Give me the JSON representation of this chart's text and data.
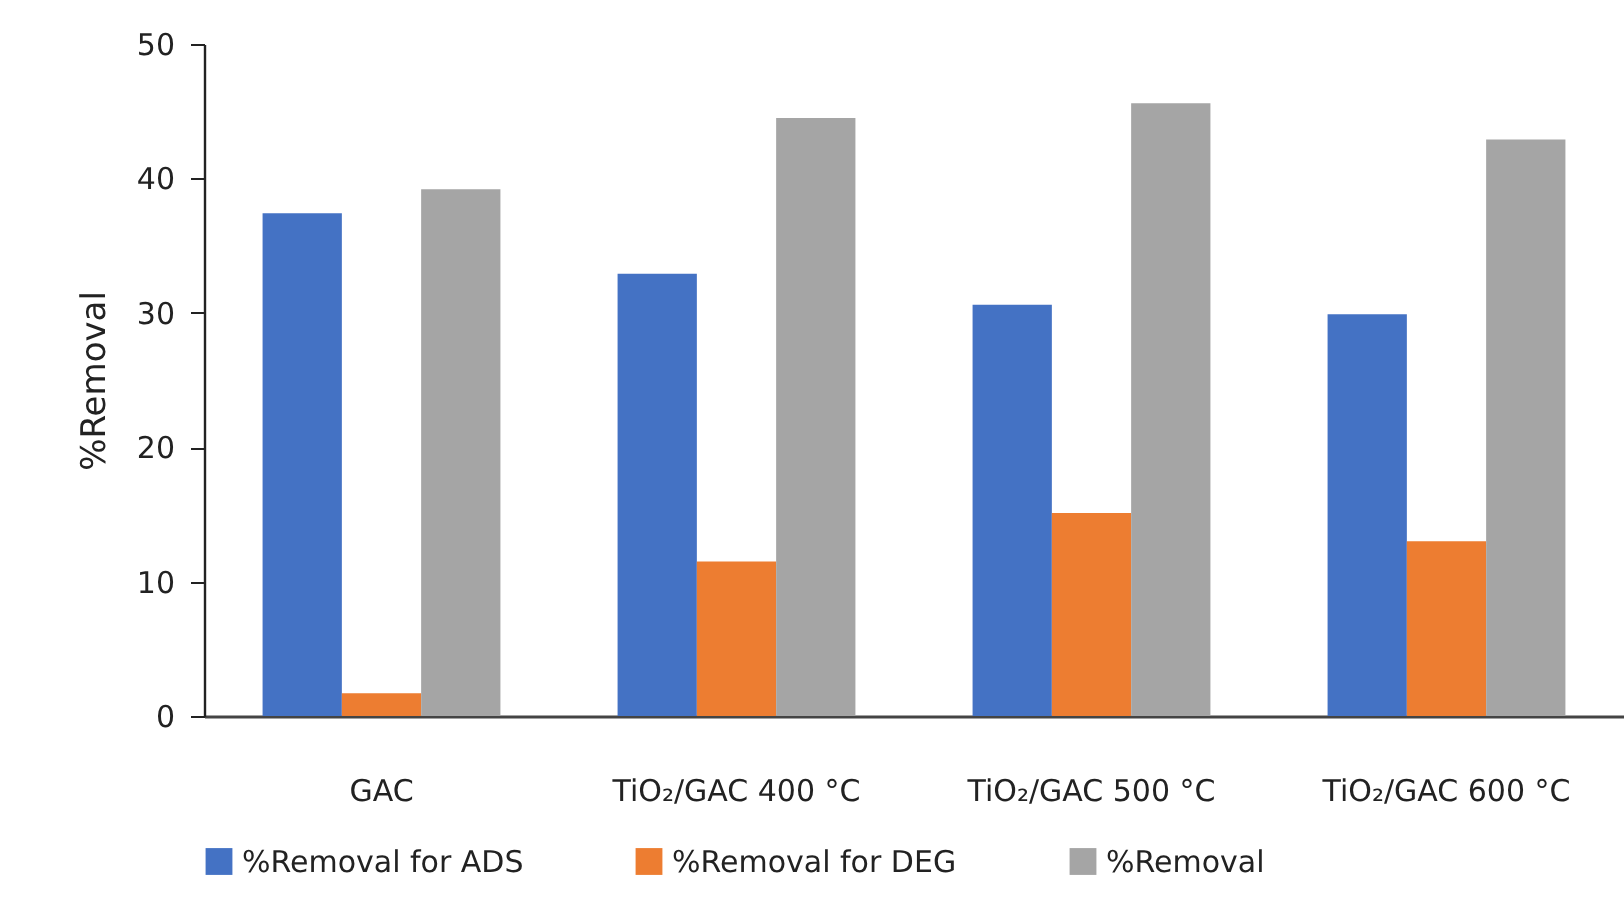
{
  "chart_data": {
    "type": "bar",
    "categories": [
      "GAC",
      "TiO₂/GAC 400 °C",
      "TiO₂/GAC 500 °C",
      "TiO₂/GAC 600 °C"
    ],
    "series": [
      {
        "name": "%Removal for ADS",
        "color": "#4472c4",
        "values": [
          37.4,
          32.9,
          30.6,
          29.9
        ]
      },
      {
        "name": "%Removal for DEG",
        "color": "#ed7d31",
        "values": [
          1.7,
          11.5,
          15.1,
          13.0
        ]
      },
      {
        "name": "%Removal",
        "color": "#a5a5a5",
        "values": [
          39.2,
          44.5,
          45.6,
          42.9
        ]
      }
    ],
    "ylabel": "%Removal",
    "ylim": [
      0,
      50
    ],
    "yticks": [
      0,
      10,
      20,
      30,
      40,
      50
    ],
    "legend": "bottom"
  }
}
